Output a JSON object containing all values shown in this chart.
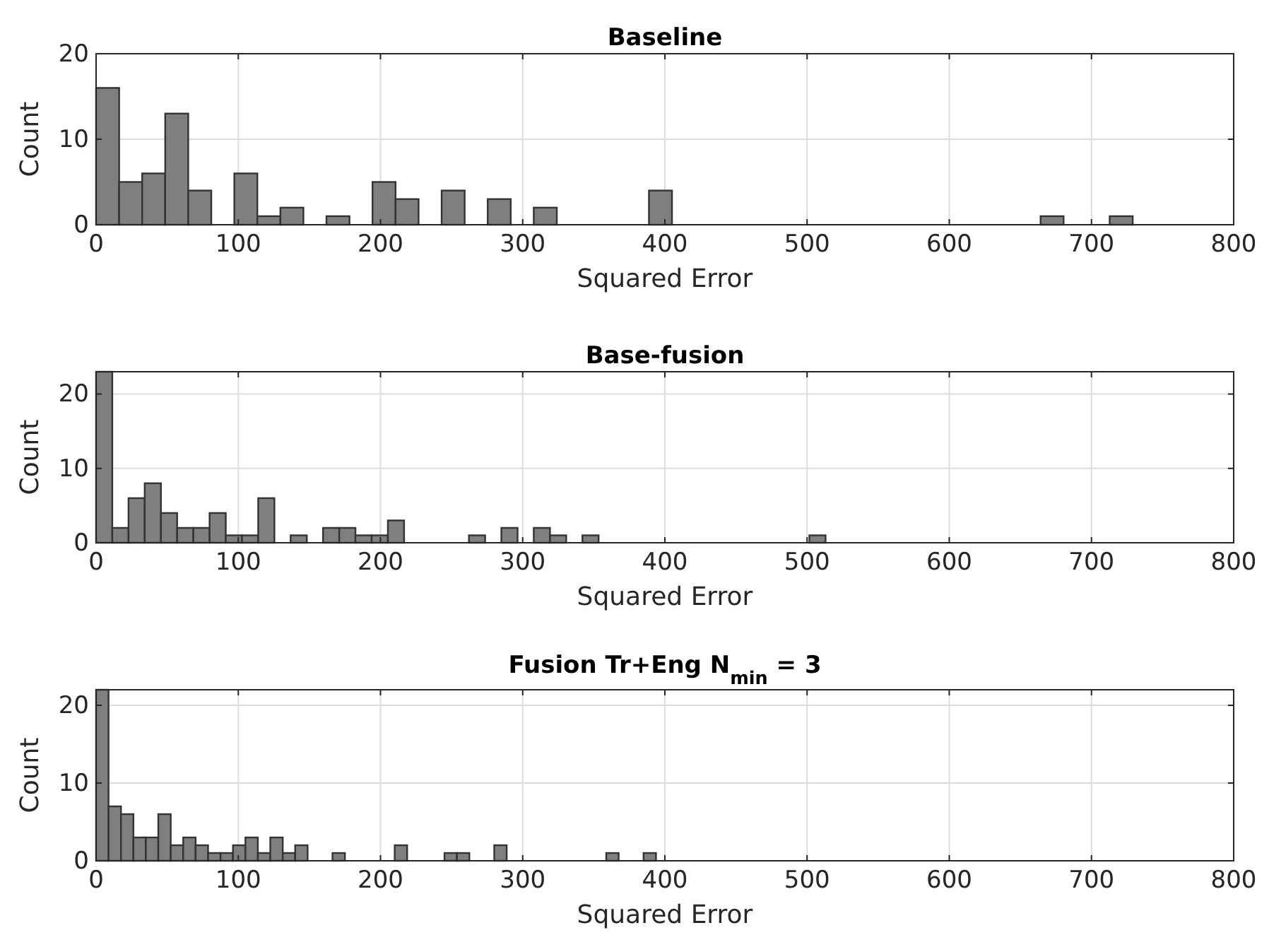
{
  "chart_data": [
    {
      "type": "histogram",
      "title": "Baseline",
      "xlabel": "Squared Error",
      "ylabel": "Count",
      "color": "#7f7f7f",
      "grid": true,
      "bins": [
        0,
        16.2,
        32.4,
        48.6,
        64.8,
        81,
        97.2,
        113.4,
        129.6,
        145.8,
        162,
        178.2,
        194.4,
        210.6,
        226.8,
        243,
        259.2,
        275.4,
        291.6,
        307.8,
        324,
        340.2,
        356.4,
        372.6,
        388.8,
        405,
        421.2,
        437.4,
        453.6,
        469.8,
        486,
        502.2,
        518.4,
        534.6,
        550.8,
        567,
        583.2,
        599.4,
        615.6,
        631.8,
        648,
        664.2,
        680.4,
        696.6,
        712.8,
        729
      ],
      "values": [
        16,
        5,
        6,
        13,
        4,
        0,
        6,
        1,
        2,
        0,
        1,
        0,
        5,
        3,
        0,
        4,
        0,
        3,
        0,
        2,
        0,
        0,
        0,
        0,
        4,
        0,
        0,
        0,
        0,
        0,
        0,
        0,
        0,
        0,
        0,
        0,
        0,
        0,
        0,
        0,
        0,
        1,
        0,
        0,
        1
      ],
      "xlim": [
        0,
        800
      ],
      "xticks": [
        0,
        100,
        200,
        300,
        400,
        500,
        600,
        700,
        800
      ],
      "ylim": [
        0,
        20
      ],
      "yticks": [
        0,
        10,
        20
      ]
    },
    {
      "type": "histogram",
      "title": "Base-fusion",
      "xlabel": "Squared Error",
      "ylabel": "Count",
      "color": "#7f7f7f",
      "grid": true,
      "bins": [
        0,
        11.4,
        22.8,
        34.2,
        45.6,
        57,
        68.4,
        79.8,
        91.2,
        102.6,
        114,
        125.4,
        136.8,
        148.2,
        159.6,
        171,
        182.4,
        193.8,
        205.2,
        216.6,
        228,
        239.4,
        250.8,
        262.2,
        273.6,
        285,
        296.4,
        307.8,
        319.2,
        330.6,
        342,
        353.4,
        364.8,
        376.2,
        387.6,
        399,
        410.4,
        421.8,
        433.2,
        444.6,
        456,
        467.4,
        478.8,
        490.2,
        501.6,
        513
      ],
      "values": [
        23,
        2,
        6,
        8,
        4,
        2,
        2,
        4,
        1,
        1,
        6,
        0,
        1,
        0,
        2,
        2,
        1,
        1,
        3,
        0,
        0,
        0,
        0,
        1,
        0,
        2,
        0,
        2,
        1,
        0,
        1,
        0,
        0,
        0,
        0,
        0,
        0,
        0,
        0,
        0,
        0,
        0,
        0,
        0,
        1
      ],
      "xlim": [
        0,
        800
      ],
      "xticks": [
        0,
        100,
        200,
        300,
        400,
        500,
        600,
        700,
        800
      ],
      "ylim": [
        0,
        23
      ],
      "yticks": [
        0,
        10,
        20
      ]
    },
    {
      "type": "histogram",
      "title": "Fusion Tr+Eng N$_{min}$ = 3",
      "xlabel": "Squared Error",
      "ylabel": "Count",
      "color": "#7f7f7f",
      "grid": true,
      "bins": [
        0,
        8.75,
        17.5,
        26.25,
        35,
        43.75,
        52.5,
        61.25,
        70,
        78.75,
        87.5,
        96.25,
        105,
        113.75,
        122.5,
        131.25,
        140,
        148.75,
        157.5,
        166.25,
        175,
        183.75,
        192.5,
        201.25,
        210,
        218.75,
        227.5,
        236.25,
        245,
        253.75,
        262.5,
        271.25,
        280,
        288.75,
        297.5,
        306.25,
        315,
        323.75,
        332.5,
        341.25,
        350,
        358.75,
        367.5,
        376.25,
        385,
        393.75
      ],
      "values": [
        22,
        7,
        6,
        3,
        3,
        6,
        2,
        3,
        2,
        1,
        1,
        2,
        3,
        1,
        3,
        1,
        2,
        0,
        0,
        1,
        0,
        0,
        0,
        0,
        2,
        0,
        0,
        0,
        1,
        1,
        0,
        0,
        2,
        0,
        0,
        0,
        0,
        0,
        0,
        0,
        0,
        1,
        0,
        0,
        1
      ],
      "xlim": [
        0,
        800
      ],
      "xticks": [
        0,
        100,
        200,
        300,
        400,
        500,
        600,
        700,
        800
      ],
      "ylim": [
        0,
        22
      ],
      "yticks": [
        0,
        10,
        20
      ]
    }
  ]
}
